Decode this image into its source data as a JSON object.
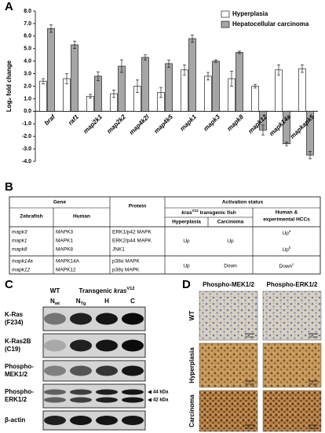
{
  "panel_labels": [
    "A",
    "B",
    "C",
    "D"
  ],
  "chart_data": {
    "type": "bar",
    "y_label": "Log₂ fold change",
    "categories": [
      "braf",
      "raf1",
      "map2k1",
      "map2k2",
      "map4k2l",
      "map4k5",
      "mapk1",
      "mapk3",
      "mapk8",
      "mapk12",
      "mapk14a",
      "mapkapk5"
    ],
    "series": [
      {
        "name": "Hyperplasia",
        "color": "#ffffff",
        "values": [
          2.4,
          2.6,
          1.2,
          1.4,
          2.0,
          1.5,
          3.3,
          2.8,
          2.6,
          2.0,
          3.3,
          3.4
        ],
        "errors": [
          0.2,
          0.4,
          0.15,
          0.3,
          0.5,
          0.4,
          0.4,
          0.3,
          0.6,
          0.15,
          0.4,
          0.3
        ]
      },
      {
        "name": "Hepatocellular carcinoma",
        "color": "#a6a6a6",
        "values": [
          6.6,
          5.3,
          2.8,
          3.6,
          4.3,
          3.8,
          5.8,
          4.0,
          4.7,
          -1.5,
          -2.6,
          -3.5
        ],
        "errors": [
          0.3,
          0.3,
          0.35,
          0.5,
          0.2,
          0.3,
          0.3,
          0.1,
          0.1,
          0.4,
          0.15,
          0.3
        ]
      }
    ],
    "ylim": [
      -4,
      8
    ],
    "yticks": [
      {
        "value": -4,
        "label": "-4.0"
      },
      {
        "value": -3,
        "label": "-3.0"
      },
      {
        "value": -2,
        "label": "-2.0"
      },
      {
        "value": -1,
        "label": "-1.0"
      },
      {
        "value": 0,
        "label": "0.0"
      },
      {
        "value": 1,
        "label": "1.0"
      },
      {
        "value": 2,
        "label": "2.0"
      },
      {
        "value": 3,
        "label": "3.0"
      },
      {
        "value": 4,
        "label": "4.0"
      },
      {
        "value": 5,
        "label": "5.0"
      },
      {
        "value": 6,
        "label": "6.0"
      },
      {
        "value": 7,
        "label": "7.0"
      },
      {
        "value": 8,
        "label": "8.0"
      }
    ],
    "legend": "upper right"
  },
  "table": {
    "header": {
      "gene": "Gene",
      "zebrafish": "Zebrafish",
      "human": "Human",
      "protein": "Protein",
      "activation": "Activation status",
      "fish": [
        "kras",
        "V12",
        " transgenic fish"
      ],
      "hyperplasia": "Hyperplasia",
      "carcinoma": "Carcinoma",
      "human_hcc": [
        "Human &",
        "experimental HCCs"
      ]
    },
    "groups": [
      {
        "rows": [
          [
            "mapk3",
            "MAPK3",
            "ERK1/p42 MAPK"
          ],
          [
            "mapk1",
            "MAPK1",
            "ERK2/p44 MAPK"
          ],
          [
            "mapk8",
            "MAPK8",
            "JNK1"
          ]
        ],
        "hyperplasia": "Up",
        "carcinoma": "Up",
        "human": [
          [
            "Up",
            "a"
          ],
          [
            "Up",
            "b"
          ]
        ]
      },
      {
        "rows": [
          [
            "mapk14a",
            "MAPK14A",
            "p38α MAPK"
          ],
          [
            "mapk12",
            "MAPK12",
            "p38γ MAPK"
          ]
        ],
        "hyperplasia": "Up",
        "carcinoma": "Down",
        "human": [
          [
            "Down",
            "c"
          ]
        ]
      }
    ]
  },
  "blot": {
    "wt": "WT",
    "transgenic": [
      "Transgenic ",
      "kras",
      "V12"
    ],
    "lanes": [
      [
        "N",
        "wt"
      ],
      [
        "N",
        "Tg"
      ],
      [
        "H"
      ],
      [
        "C"
      ]
    ],
    "rows": [
      [
        "K-Ras",
        "(F234)"
      ],
      [
        "K-Ras2B",
        "(C19)"
      ],
      [
        "Phospho-",
        "MEK1/2"
      ],
      [
        "Phospho-",
        "ERK1/2"
      ],
      [
        "β-actin"
      ]
    ],
    "markers": [
      "44 kDa",
      "42 kDa"
    ]
  },
  "ihc": {
    "columns": [
      "Phospho-MEK1/2",
      "Phospho-ERK1/2"
    ],
    "rows": [
      "WT",
      "Hyperplasia",
      "Carcinoma"
    ],
    "scale_bar": "50 μm"
  }
}
